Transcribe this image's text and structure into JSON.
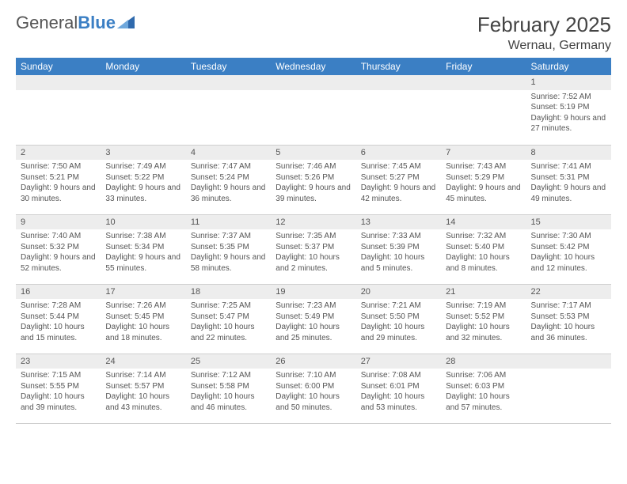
{
  "logo": {
    "text_a": "General",
    "text_b": "Blue"
  },
  "title": "February 2025",
  "location": "Wernau, Germany",
  "weekdays": [
    "Sunday",
    "Monday",
    "Tuesday",
    "Wednesday",
    "Thursday",
    "Friday",
    "Saturday"
  ],
  "colors": {
    "header_bg": "#3b7fc4",
    "header_text": "#ffffff",
    "daynum_bg": "#ededed",
    "body_text": "#555555",
    "border": "#cfcfcf",
    "page_bg": "#ffffff"
  },
  "layout": {
    "first_day_col": 6,
    "days_in_month": 28,
    "cols": 7,
    "rows": 5
  },
  "days": [
    {
      "n": 1,
      "sunrise": "7:52 AM",
      "sunset": "5:19 PM",
      "daylight": "9 hours and 27 minutes."
    },
    {
      "n": 2,
      "sunrise": "7:50 AM",
      "sunset": "5:21 PM",
      "daylight": "9 hours and 30 minutes."
    },
    {
      "n": 3,
      "sunrise": "7:49 AM",
      "sunset": "5:22 PM",
      "daylight": "9 hours and 33 minutes."
    },
    {
      "n": 4,
      "sunrise": "7:47 AM",
      "sunset": "5:24 PM",
      "daylight": "9 hours and 36 minutes."
    },
    {
      "n": 5,
      "sunrise": "7:46 AM",
      "sunset": "5:26 PM",
      "daylight": "9 hours and 39 minutes."
    },
    {
      "n": 6,
      "sunrise": "7:45 AM",
      "sunset": "5:27 PM",
      "daylight": "9 hours and 42 minutes."
    },
    {
      "n": 7,
      "sunrise": "7:43 AM",
      "sunset": "5:29 PM",
      "daylight": "9 hours and 45 minutes."
    },
    {
      "n": 8,
      "sunrise": "7:41 AM",
      "sunset": "5:31 PM",
      "daylight": "9 hours and 49 minutes."
    },
    {
      "n": 9,
      "sunrise": "7:40 AM",
      "sunset": "5:32 PM",
      "daylight": "9 hours and 52 minutes."
    },
    {
      "n": 10,
      "sunrise": "7:38 AM",
      "sunset": "5:34 PM",
      "daylight": "9 hours and 55 minutes."
    },
    {
      "n": 11,
      "sunrise": "7:37 AM",
      "sunset": "5:35 PM",
      "daylight": "9 hours and 58 minutes."
    },
    {
      "n": 12,
      "sunrise": "7:35 AM",
      "sunset": "5:37 PM",
      "daylight": "10 hours and 2 minutes."
    },
    {
      "n": 13,
      "sunrise": "7:33 AM",
      "sunset": "5:39 PM",
      "daylight": "10 hours and 5 minutes."
    },
    {
      "n": 14,
      "sunrise": "7:32 AM",
      "sunset": "5:40 PM",
      "daylight": "10 hours and 8 minutes."
    },
    {
      "n": 15,
      "sunrise": "7:30 AM",
      "sunset": "5:42 PM",
      "daylight": "10 hours and 12 minutes."
    },
    {
      "n": 16,
      "sunrise": "7:28 AM",
      "sunset": "5:44 PM",
      "daylight": "10 hours and 15 minutes."
    },
    {
      "n": 17,
      "sunrise": "7:26 AM",
      "sunset": "5:45 PM",
      "daylight": "10 hours and 18 minutes."
    },
    {
      "n": 18,
      "sunrise": "7:25 AM",
      "sunset": "5:47 PM",
      "daylight": "10 hours and 22 minutes."
    },
    {
      "n": 19,
      "sunrise": "7:23 AM",
      "sunset": "5:49 PM",
      "daylight": "10 hours and 25 minutes."
    },
    {
      "n": 20,
      "sunrise": "7:21 AM",
      "sunset": "5:50 PM",
      "daylight": "10 hours and 29 minutes."
    },
    {
      "n": 21,
      "sunrise": "7:19 AM",
      "sunset": "5:52 PM",
      "daylight": "10 hours and 32 minutes."
    },
    {
      "n": 22,
      "sunrise": "7:17 AM",
      "sunset": "5:53 PM",
      "daylight": "10 hours and 36 minutes."
    },
    {
      "n": 23,
      "sunrise": "7:15 AM",
      "sunset": "5:55 PM",
      "daylight": "10 hours and 39 minutes."
    },
    {
      "n": 24,
      "sunrise": "7:14 AM",
      "sunset": "5:57 PM",
      "daylight": "10 hours and 43 minutes."
    },
    {
      "n": 25,
      "sunrise": "7:12 AM",
      "sunset": "5:58 PM",
      "daylight": "10 hours and 46 minutes."
    },
    {
      "n": 26,
      "sunrise": "7:10 AM",
      "sunset": "6:00 PM",
      "daylight": "10 hours and 50 minutes."
    },
    {
      "n": 27,
      "sunrise": "7:08 AM",
      "sunset": "6:01 PM",
      "daylight": "10 hours and 53 minutes."
    },
    {
      "n": 28,
      "sunrise": "7:06 AM",
      "sunset": "6:03 PM",
      "daylight": "10 hours and 57 minutes."
    }
  ],
  "labels": {
    "sunrise": "Sunrise:",
    "sunset": "Sunset:",
    "daylight": "Daylight:"
  }
}
